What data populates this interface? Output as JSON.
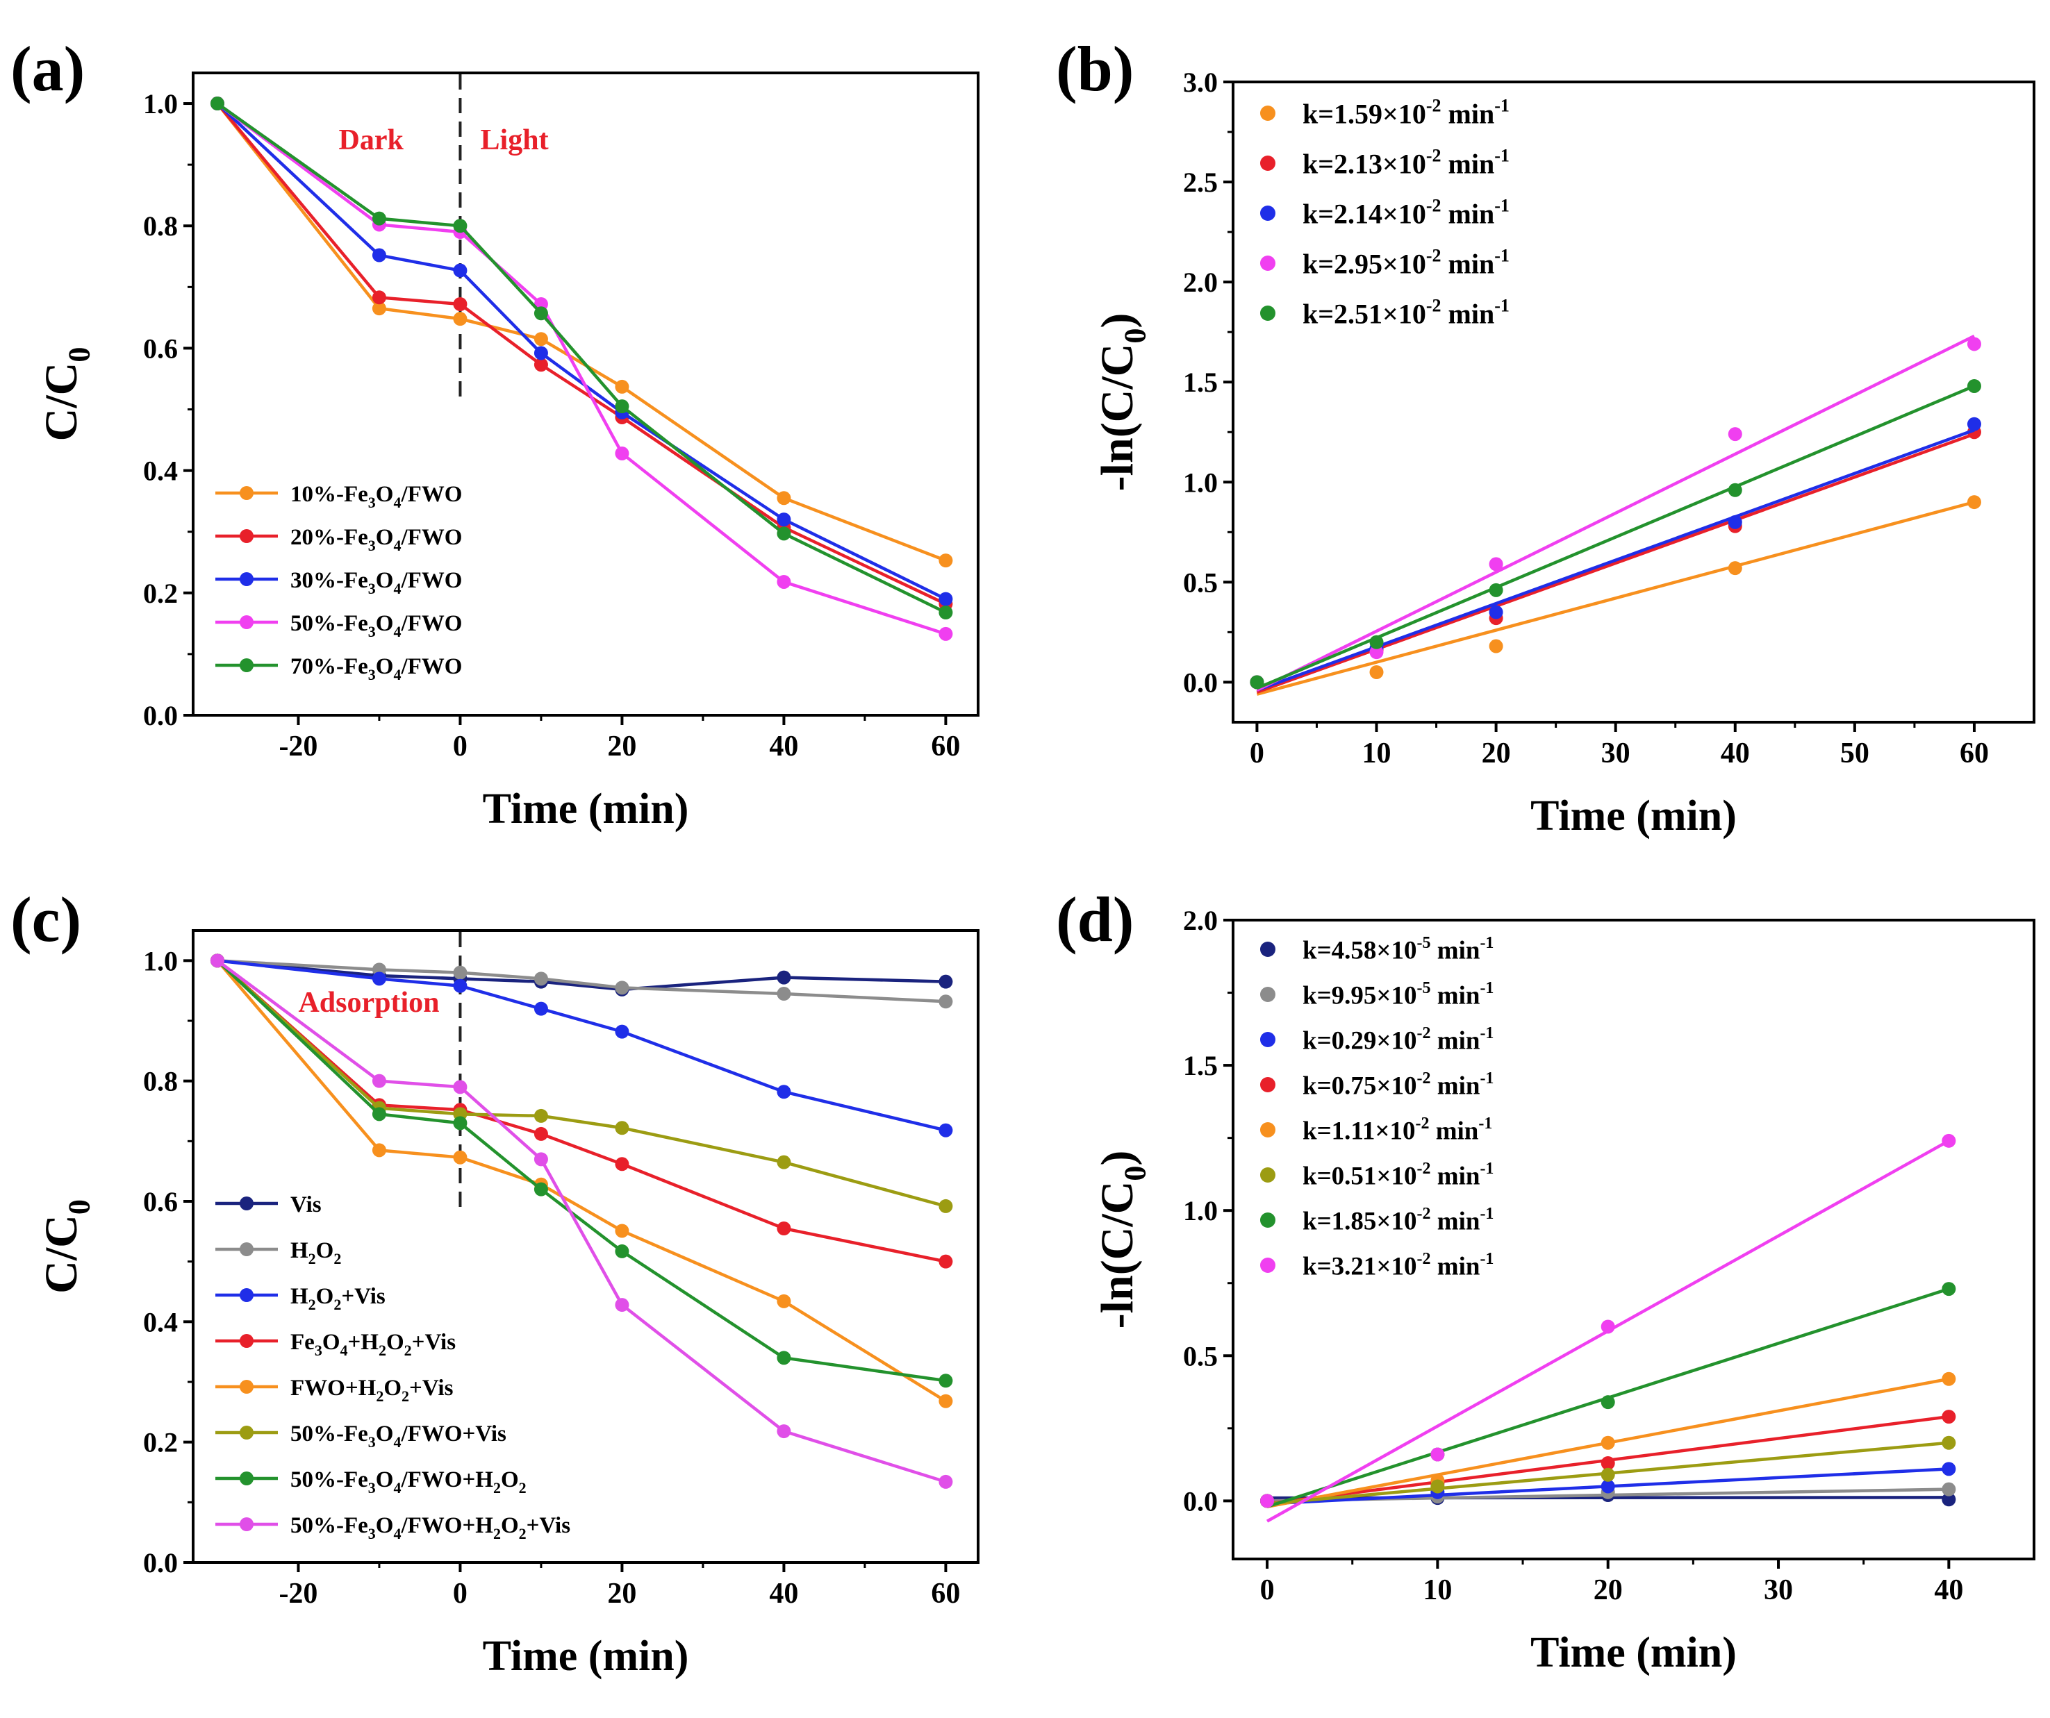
{
  "chart_data": [
    {
      "id": "a",
      "panel_label": "(a)",
      "type": "line",
      "xlabel": "Time (min)",
      "ylabel": "C/C0",
      "xlim": [
        -33,
        64
      ],
      "ylim": [
        0,
        1.05
      ],
      "xticks": [
        -20,
        0,
        20,
        40,
        60
      ],
      "yticks": [
        0.0,
        0.2,
        0.4,
        0.6,
        0.8,
        1.0
      ],
      "ytick_decimals": 1,
      "legend_position": "bottom-left",
      "divider_x": 0,
      "annotations": [
        {
          "text": "Dark",
          "x": -7,
          "y": 0.925,
          "anchor": "end",
          "color": "#e8202a"
        },
        {
          "text": "Light",
          "x": 2.5,
          "y": 0.925,
          "anchor": "start",
          "color": "#e8202a"
        }
      ],
      "x": [
        -30,
        -10,
        0,
        10,
        20,
        40,
        60
      ],
      "series": [
        {
          "name": "10%-Fe3O4/FWO",
          "name_parts": [
            "10%-Fe",
            "3",
            "O",
            "4",
            "/FWO"
          ],
          "color": "#f7901e",
          "values": [
            1.0,
            0.665,
            0.648,
            0.615,
            0.537,
            0.355,
            0.253
          ]
        },
        {
          "name": "20%-Fe3O4/FWO",
          "name_parts": [
            "20%-Fe",
            "3",
            "O",
            "4",
            "/FWO"
          ],
          "color": "#e8202a",
          "values": [
            1.0,
            0.683,
            0.672,
            0.573,
            0.487,
            0.307,
            0.182
          ]
        },
        {
          "name": "30%-Fe3O4/FWO",
          "name_parts": [
            "30%-Fe",
            "3",
            "O",
            "4",
            "/FWO"
          ],
          "color": "#1f2ee8",
          "values": [
            1.0,
            0.752,
            0.727,
            0.592,
            0.495,
            0.32,
            0.19
          ]
        },
        {
          "name": "50%-Fe3O4/FWO",
          "name_parts": [
            "50%-Fe",
            "3",
            "O",
            "4",
            "/FWO"
          ],
          "color": "#f03ff0",
          "values": [
            1.0,
            0.802,
            0.79,
            0.672,
            0.428,
            0.218,
            0.133
          ]
        },
        {
          "name": "70%-Fe3O4/FWO",
          "name_parts": [
            "70%-Fe",
            "3",
            "O",
            "4",
            "/FWO"
          ],
          "color": "#23922d",
          "values": [
            1.0,
            0.812,
            0.8,
            0.657,
            0.505,
            0.297,
            0.168
          ]
        }
      ]
    },
    {
      "id": "b",
      "panel_label": "(b)",
      "type": "scatter",
      "xlabel": "Time (min)",
      "ylabel": "-ln(C/C0)",
      "xlim": [
        -2,
        65
      ],
      "ylim": [
        -0.2,
        3.0
      ],
      "xticks": [
        0,
        10,
        20,
        30,
        40,
        50,
        60
      ],
      "yticks": [
        0.0,
        0.5,
        1.0,
        1.5,
        2.0,
        2.5,
        3.0
      ],
      "ytick_decimals": 1,
      "legend_position": "top-left",
      "x": [
        0,
        10,
        20,
        40,
        60
      ],
      "series": [
        {
          "name": "k=1.59×10-2 min-1",
          "name_parts": [
            "k=1.59×10",
            "-2",
            " min",
            "-1"
          ],
          "color": "#f7901e",
          "values": [
            0.0,
            0.05,
            0.18,
            0.57,
            0.9
          ],
          "fit": [
            [
              0,
              -0.06
            ],
            [
              60,
              0.9
            ]
          ]
        },
        {
          "name": "k=2.13×10-2 min-1",
          "name_parts": [
            "k=2.13×10",
            "-2",
            " min",
            "-1"
          ],
          "color": "#e8202a",
          "values": [
            0.0,
            0.16,
            0.32,
            0.78,
            1.25
          ],
          "fit": [
            [
              0,
              -0.05
            ],
            [
              60,
              1.24
            ]
          ]
        },
        {
          "name": "k=2.14×10-2 min-1",
          "name_parts": [
            "k=2.14×10",
            "-2",
            " min",
            "-1"
          ],
          "color": "#1f2ee8",
          "values": [
            0.0,
            0.17,
            0.35,
            0.8,
            1.29
          ],
          "fit": [
            [
              0,
              -0.04
            ],
            [
              60,
              1.26
            ]
          ]
        },
        {
          "name": "k=2.95×10-2 min-1",
          "name_parts": [
            "k=2.95×10",
            "-2",
            " min",
            "-1"
          ],
          "color": "#f03ff0",
          "values": [
            0.0,
            0.15,
            0.59,
            1.24,
            1.69
          ],
          "fit": [
            [
              0,
              -0.04
            ],
            [
              60,
              1.73
            ]
          ]
        },
        {
          "name": "k=2.51×10-2 min-1",
          "name_parts": [
            "k=2.51×10",
            "-2",
            " min",
            "-1"
          ],
          "color": "#23922d",
          "values": [
            0.0,
            0.2,
            0.46,
            0.96,
            1.48
          ],
          "fit": [
            [
              0,
              -0.03
            ],
            [
              60,
              1.48
            ]
          ]
        }
      ]
    },
    {
      "id": "c",
      "panel_label": "(c)",
      "type": "line",
      "xlabel": "Time (min)",
      "ylabel": "C/C0",
      "xlim": [
        -33,
        64
      ],
      "ylim": [
        0,
        1.05
      ],
      "xticks": [
        -20,
        0,
        20,
        40,
        60
      ],
      "yticks": [
        0.0,
        0.2,
        0.4,
        0.6,
        0.8,
        1.0
      ],
      "ytick_decimals": 1,
      "legend_position": "bottom-left",
      "divider_x": 0,
      "divider_ymin": 0.58,
      "annotations": [
        {
          "text": "Adsorption",
          "x": -20,
          "y": 0.915,
          "anchor": "start",
          "color": "#e8202a"
        }
      ],
      "x": [
        -30,
        -10,
        0,
        10,
        20,
        40,
        60
      ],
      "series": [
        {
          "name": "Vis",
          "name_parts": [
            "Vis"
          ],
          "color": "#1a237e",
          "values": [
            1.0,
            0.975,
            0.97,
            0.965,
            0.952,
            0.972,
            0.965
          ]
        },
        {
          "name": "H2O2",
          "name_parts": [
            "H",
            "2",
            "O",
            "2"
          ],
          "color": "#8c8c8c",
          "values": [
            1.0,
            0.985,
            0.98,
            0.97,
            0.955,
            0.945,
            0.932
          ]
        },
        {
          "name": "H2O2+Vis",
          "name_parts": [
            "H",
            "2",
            "O",
            "2",
            "+Vis"
          ],
          "color": "#1f2ee8",
          "values": [
            1.0,
            0.97,
            0.958,
            0.92,
            0.882,
            0.782,
            0.718
          ]
        },
        {
          "name": "Fe3O4+H2O2+Vis",
          "name_parts": [
            "Fe",
            "3",
            "O",
            "4",
            "+H",
            "2",
            "O",
            "2",
            "+Vis"
          ],
          "color": "#e8202a",
          "values": [
            1.0,
            0.76,
            0.752,
            0.712,
            0.662,
            0.555,
            0.5
          ]
        },
        {
          "name": "FWO+H2O2+Vis",
          "name_parts": [
            "FWO+H",
            "2",
            "O",
            "2",
            "+Vis"
          ],
          "color": "#f7901e",
          "values": [
            1.0,
            0.685,
            0.673,
            0.628,
            0.551,
            0.434,
            0.268
          ]
        },
        {
          "name": "50%-Fe3O4/FWO+Vis",
          "name_parts": [
            "50%-Fe",
            "3",
            "O",
            "4",
            "/FWO+Vis"
          ],
          "color": "#9c9c12",
          "values": [
            1.0,
            0.755,
            0.745,
            0.742,
            0.722,
            0.665,
            0.592
          ]
        },
        {
          "name": "50%-Fe3O4/FWO+H2O2",
          "name_parts": [
            "50%-Fe",
            "3",
            "O",
            "4",
            "/FWO+H",
            "2",
            "O",
            "2"
          ],
          "color": "#23922d",
          "values": [
            1.0,
            0.745,
            0.73,
            0.62,
            0.517,
            0.34,
            0.302
          ]
        },
        {
          "name": "50%-Fe3O4/FWO+H2O2+Vis",
          "name_parts": [
            "50%-Fe",
            "3",
            "O",
            "4",
            "/FWO+H",
            "2",
            "O",
            "2",
            "+Vis"
          ],
          "color": "#e04fe8",
          "values": [
            1.0,
            0.8,
            0.79,
            0.67,
            0.428,
            0.218,
            0.134
          ]
        }
      ]
    },
    {
      "id": "d",
      "panel_label": "(d)",
      "type": "scatter",
      "xlabel": "Time (min)",
      "ylabel": "-ln(C/C0)",
      "xlim": [
        -2,
        45
      ],
      "ylim": [
        -0.2,
        2.0
      ],
      "xticks": [
        0,
        10,
        20,
        30,
        40
      ],
      "yticks": [
        0.0,
        0.5,
        1.0,
        1.5,
        2.0
      ],
      "ytick_decimals": 1,
      "legend_position": "top-left",
      "x": [
        0,
        10,
        20,
        40
      ],
      "series": [
        {
          "name": "k=4.58×10-5 min-1",
          "name_parts": [
            "k=4.58×10",
            "-5",
            " min",
            "-1"
          ],
          "color": "#1a237e",
          "values": [
            0.0,
            0.01,
            0.02,
            0.005
          ],
          "fit": [
            [
              0,
              0.01
            ],
            [
              40,
              0.012
            ]
          ]
        },
        {
          "name": "k=9.95×10-5 min-1",
          "name_parts": [
            "k=9.95×10",
            "-5",
            " min",
            "-1"
          ],
          "color": "#8c8c8c",
          "values": [
            0.0,
            0.015,
            0.03,
            0.04
          ],
          "fit": [
            [
              0,
              0.0
            ],
            [
              40,
              0.04
            ]
          ]
        },
        {
          "name": "k=0.29×10-2 min-1",
          "name_parts": [
            "k=0.29×10",
            "-2",
            " min",
            "-1"
          ],
          "color": "#1f2ee8",
          "values": [
            0.0,
            0.03,
            0.05,
            0.11
          ],
          "fit": [
            [
              0,
              -0.01
            ],
            [
              40,
              0.11
            ]
          ]
        },
        {
          "name": "k=0.75×10-2 min-1",
          "name_parts": [
            "k=0.75×10",
            "-2",
            " min",
            "-1"
          ],
          "color": "#e8202a",
          "values": [
            0.0,
            0.06,
            0.13,
            0.29
          ],
          "fit": [
            [
              0,
              -0.01
            ],
            [
              40,
              0.29
            ]
          ]
        },
        {
          "name": "k=1.11×10-2 min-1",
          "name_parts": [
            "k=1.11×10",
            "-2",
            " min",
            "-1"
          ],
          "color": "#f7901e",
          "values": [
            0.0,
            0.07,
            0.2,
            0.42
          ],
          "fit": [
            [
              0,
              -0.02
            ],
            [
              40,
              0.42
            ]
          ]
        },
        {
          "name": "k=0.51×10-2 min-1",
          "name_parts": [
            "k=0.51×10",
            "-2",
            " min",
            "-1"
          ],
          "color": "#9c9c12",
          "values": [
            0.0,
            0.05,
            0.09,
            0.2
          ],
          "fit": [
            [
              0,
              -0.01
            ],
            [
              40,
              0.2
            ]
          ]
        },
        {
          "name": "k=1.85×10-2 min-1",
          "name_parts": [
            "k=1.85×10",
            "-2",
            " min",
            "-1"
          ],
          "color": "#23922d",
          "values": [
            0.0,
            0.16,
            0.34,
            0.73
          ],
          "fit": [
            [
              0,
              -0.02
            ],
            [
              40,
              0.73
            ]
          ]
        },
        {
          "name": "k=3.21×10-2 min-1",
          "name_parts": [
            "k=3.21×10",
            "-2",
            " min",
            "-1"
          ],
          "color": "#f03ff0",
          "values": [
            0.0,
            0.16,
            0.6,
            1.24
          ],
          "fit": [
            [
              0,
              -0.07
            ],
            [
              40,
              1.24
            ]
          ]
        }
      ]
    }
  ]
}
